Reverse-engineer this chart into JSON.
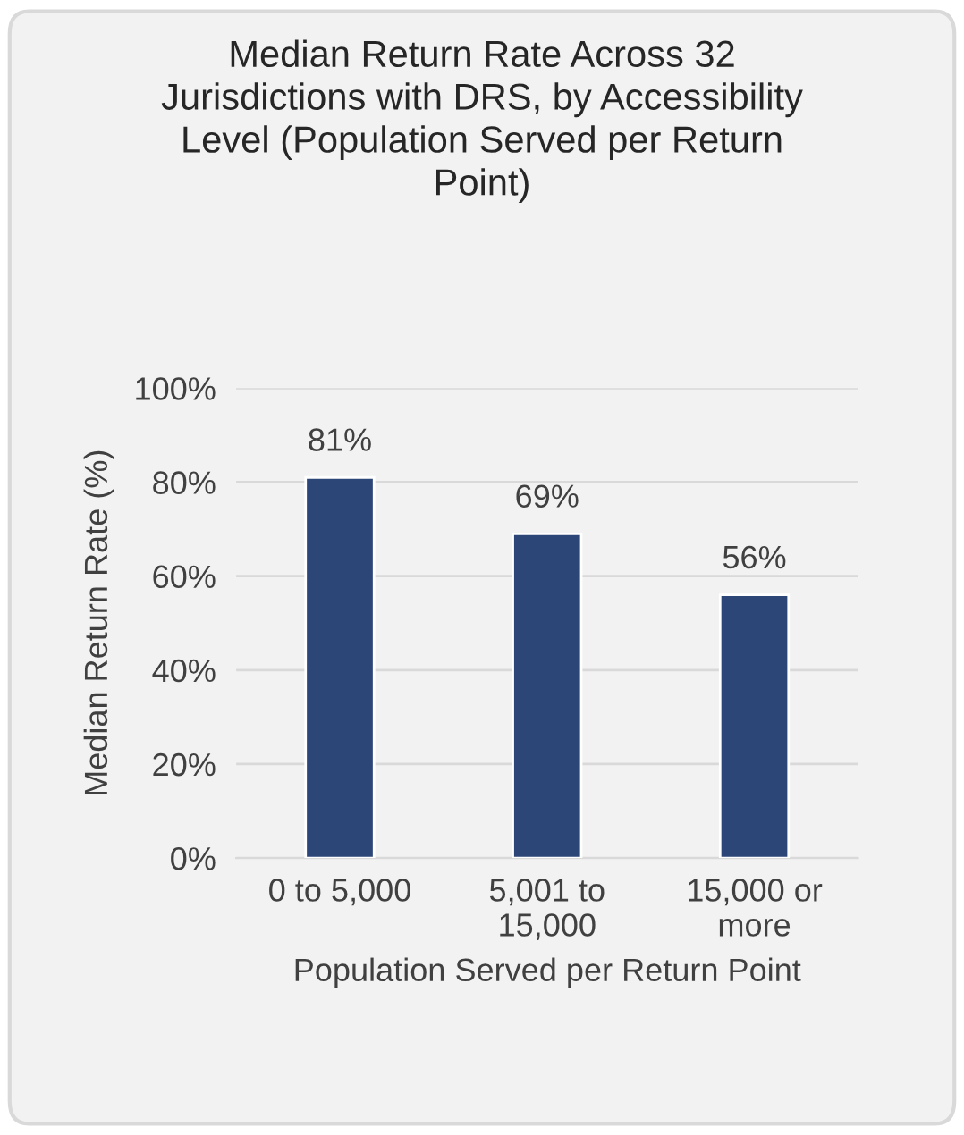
{
  "chart_data": {
    "type": "bar",
    "title": "Median Return Rate Across 32\nJurisdictions with DRS, by Accessibility\nLevel (Population Served per Return\nPoint)",
    "xlabel": "Population Served per Return Point",
    "ylabel": "Median Return Rate (%)",
    "categories": [
      "0 to 5,000",
      "5,001 to\n15,000",
      "15,000 or\nmore"
    ],
    "values": [
      81,
      69,
      56
    ],
    "value_labels": [
      "81%",
      "69%",
      "56%"
    ],
    "color": "#2b4677",
    "ylim": [
      0,
      100
    ],
    "yticks": [
      {
        "value": 0,
        "label": "0%"
      },
      {
        "value": 20,
        "label": "20%"
      },
      {
        "value": 40,
        "label": "40%"
      },
      {
        "value": 60,
        "label": "60%"
      },
      {
        "value": 80,
        "label": "80%"
      },
      {
        "value": 100,
        "label": "100%"
      }
    ],
    "grid": "y",
    "legend": false
  }
}
